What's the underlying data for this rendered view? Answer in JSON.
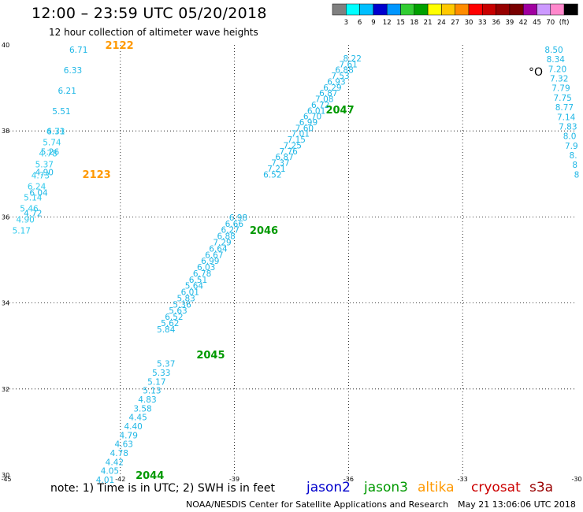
{
  "header": {
    "title": "12:00 – 23:59 UTC 05/20/2018",
    "subtitle": "12 hour collection of altimeter wave heights"
  },
  "legend": {
    "colors": [
      "#808080",
      "#00ffff",
      "#00bfff",
      "#0000cd",
      "#0096ff",
      "#32cd32",
      "#00a000",
      "#ffff00",
      "#ffc800",
      "#ff8c00",
      "#ff0000",
      "#c80000",
      "#960000",
      "#780000",
      "#a000a0",
      "#cc99ff",
      "#ff88cc",
      "#000000"
    ],
    "labels": [
      "3",
      "6",
      "9",
      "12",
      "15",
      "18",
      "21",
      "24",
      "27",
      "30",
      "33",
      "36",
      "39",
      "42",
      "45",
      "70",
      "(ft)"
    ]
  },
  "map": {
    "lon_range": [
      -45,
      -30
    ],
    "lat_range": [
      30,
      40
    ],
    "lon_ticks": [
      "-45",
      "-42",
      "-39",
      "-36",
      "-33",
      "-30"
    ],
    "lat_ticks": [
      "40",
      "38",
      "36",
      "34",
      "32",
      "30"
    ],
    "grid": "dotted",
    "island_marker": "°O"
  },
  "tracks": [
    {
      "id": "2122",
      "label": "2122",
      "satellite": "altika",
      "label_color": "#ff9900",
      "value_color": "#1fb7e6",
      "start": [
        -43.1,
        40.0
      ],
      "end": [
        -44.3,
        36.2
      ],
      "label_pos": [
        -42.4,
        40.0
      ],
      "values": [
        "6.71",
        "6.33",
        "6.21",
        "5.51",
        "6.31",
        "5.26",
        "4.90",
        "6.04",
        "4.72"
      ]
    },
    {
      "id": "2123",
      "label": "2123",
      "satellite": "altika",
      "label_color": "#ff9900",
      "value_color": "#2ec9ec",
      "start": [
        -43.7,
        38.1
      ],
      "end": [
        -44.6,
        35.8
      ],
      "label_pos": [
        -43.0,
        37.0
      ],
      "values": [
        "4.73",
        "5.74",
        "4.78",
        "5.37",
        "4.73",
        "6.24",
        "5.14",
        "5.46",
        "4.90",
        "5.17"
      ]
    },
    {
      "id": "2047",
      "label": "2047",
      "satellite": "jason3",
      "label_color": "#009900",
      "value_color": "#1fb7e6",
      "start": [
        -35.9,
        39.8
      ],
      "end": [
        -38.0,
        37.1
      ],
      "label_pos": [
        -36.6,
        38.5
      ],
      "values": [
        "8.22",
        "7.61",
        "6.88",
        "7.53",
        "6.93",
        "6.29",
        "6.87",
        "7.08",
        "6.72",
        "6.01",
        "6.70",
        "6.99",
        "7.60",
        "7.01",
        "7.15",
        "7.25",
        "7.76",
        "6.87",
        "7.37",
        "7.21",
        "6.52"
      ]
    },
    {
      "id": "2046",
      "label": "2046",
      "satellite": "jason3",
      "label_color": "#009900",
      "value_color": "#1fb7e6",
      "start": [
        -38.9,
        36.1
      ],
      "end": [
        -40.8,
        33.5
      ],
      "label_pos": [
        -38.6,
        35.7
      ],
      "values": [
        "6.98",
        "6.66",
        "6.27",
        "6.88",
        "7.29",
        "6.64",
        "6.67",
        "6.99",
        "6.03",
        "6.78",
        "6.51",
        "5.64",
        "6.01",
        "5.83",
        "5.36",
        "5.63",
        "6.52",
        "5.62",
        "5.84"
      ]
    },
    {
      "id": "2045",
      "label": "2045",
      "satellite": "jason3",
      "label_color": "#009900",
      "value_color": "#1fb7e6",
      "start": [
        -40.8,
        32.7
      ],
      "end": [
        -42.4,
        30.0
      ],
      "label_pos": [
        -40.0,
        32.8
      ],
      "values": [
        "5.37",
        "5.33",
        "5.17",
        "5.13",
        "4.83",
        "3.58",
        "4.45",
        "4.40",
        "4.79",
        "4.63",
        "4.78",
        "4.42",
        "4.05",
        "4.01"
      ]
    },
    {
      "id": "2044",
      "label": "2044",
      "satellite": "jason3",
      "label_color": "#009900",
      "value_color": "#1fb7e6",
      "start": [
        -42.4,
        30.0
      ],
      "end": [
        -42.4,
        30.0
      ],
      "label_pos": [
        -41.6,
        30.0
      ],
      "values": []
    },
    {
      "id": "east",
      "label": "",
      "satellite": "jason3",
      "label_color": "#009900",
      "value_color": "#1fb7e6",
      "start": [
        -30.6,
        40.0
      ],
      "end": [
        -30.0,
        37.1
      ],
      "label_pos": [
        -30.0,
        40.0
      ],
      "values": [
        "8.50",
        "8.34",
        "7.20",
        "7.32",
        "7.79",
        "7.75",
        "8.77",
        "7.14",
        "7.83",
        "8.0",
        "7.9",
        "8.",
        "8",
        "8"
      ]
    }
  ],
  "footer": {
    "note": "note:  1) Time is in UTC;  2) SWH is in feet",
    "satellites": [
      {
        "name": "jason2",
        "color": "#0000cc"
      },
      {
        "name": "jason3",
        "color": "#009900"
      },
      {
        "name": "altika",
        "color": "#ff9900"
      },
      {
        "name": "cryosat",
        "color": "#cc0000"
      },
      {
        "name": "s3a",
        "color": "#990000"
      }
    ],
    "credit": "NOAA/NESDIS Center for Satellite Applications and Research",
    "timestamp": "May 21 13:06:06 UTC 2018"
  }
}
